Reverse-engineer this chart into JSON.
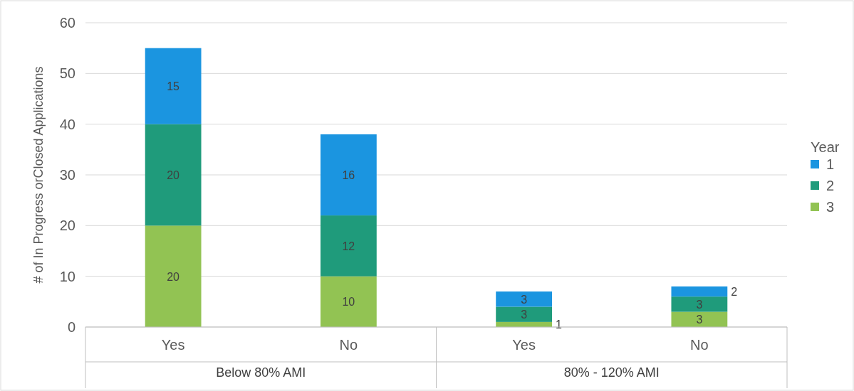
{
  "chart_data": {
    "type": "bar",
    "stacked": true,
    "ylabel": "# of In Progress orClosed Applications",
    "legend_title": "Year",
    "categories": [
      "Yes",
      "No",
      "Yes",
      "No"
    ],
    "annotations": [
      "Below 80% AMI",
      "80% - 120% AMI"
    ],
    "series": [
      {
        "name": "3",
        "color": "#92c353",
        "values": [
          20,
          10,
          1,
          3
        ]
      },
      {
        "name": "2",
        "color": "#1f9b7b",
        "values": [
          20,
          12,
          3,
          3
        ]
      },
      {
        "name": "1",
        "color": "#1b95e0",
        "values": [
          15,
          16,
          3,
          2
        ]
      }
    ],
    "ylim": [
      0,
      60
    ],
    "yticks": [
      0,
      10,
      20,
      30,
      40,
      50,
      60
    ],
    "grid": "y",
    "legend": "right",
    "data_labels": true
  }
}
